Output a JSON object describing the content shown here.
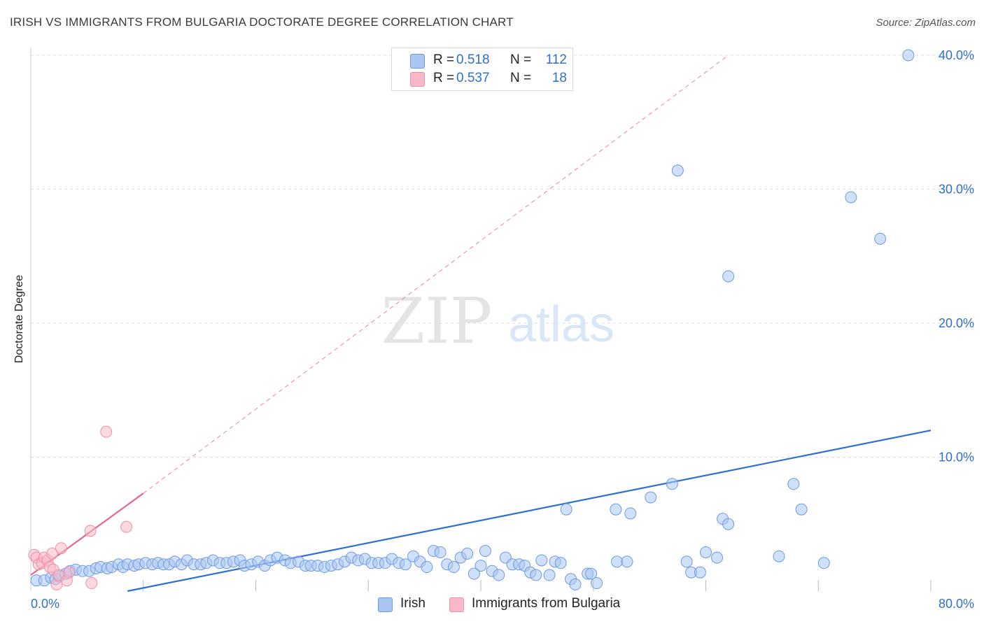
{
  "header": {
    "title": "IRISH VS IMMIGRANTS FROM BULGARIA DOCTORATE DEGREE CORRELATION CHART",
    "source": "Source: ZipAtlas.com"
  },
  "watermark": {
    "zip": "ZIP",
    "atlas": "atlas"
  },
  "legend": {
    "rows": [
      {
        "r_label": "R =",
        "r_value": "0.518",
        "n_label": "N =",
        "n_value": "112",
        "color": "#a9c6f2"
      },
      {
        "r_label": "R =",
        "r_value": "0.537",
        "n_label": "N =",
        "n_value": "18",
        "color": "#f7b9c9"
      }
    ]
  },
  "bottom_legend": [
    {
      "label": "Irish",
      "color": "#a9c6f2"
    },
    {
      "label": "Immigrants from Bulgaria",
      "color": "#f7b9c9"
    }
  ],
  "chart_data": {
    "type": "scatter",
    "title": "IRISH VS IMMIGRANTS FROM BULGARIA DOCTORATE DEGREE CORRELATION CHART",
    "xlabel": "",
    "ylabel": "Doctorate Degree",
    "xlim": [
      0,
      80
    ],
    "ylim": [
      0,
      40.8
    ],
    "x_tick_labels": {
      "0": "0.0%",
      "80": "80.0%"
    },
    "y_ticks": [
      10,
      20,
      30,
      40
    ],
    "y_tick_labels": [
      "10.0%",
      "20.0%",
      "30.0%",
      "40.0%"
    ],
    "grid": true,
    "legend_position": "top-center",
    "colors": {
      "irish_fill": "#a9c6f2",
      "irish_stroke": "#6d9be0",
      "irish_line": "#2f6fd0",
      "bulgaria_fill": "#f7b9c9",
      "bulgaria_stroke": "#ef8fa9",
      "bulgaria_line": "#e8668c",
      "axis_text": "#2f6fd0",
      "grid": "#dddddd"
    },
    "series": [
      {
        "name": "Irish",
        "R": 0.518,
        "N": 112,
        "trend": {
          "x": [
            8.6,
            80
          ],
          "y": [
            0,
            12.0
          ]
        },
        "points": [
          [
            0.5,
            0.8
          ],
          [
            1.2,
            0.8
          ],
          [
            1.8,
            1.0
          ],
          [
            2.2,
            0.9
          ],
          [
            2.5,
            1.1
          ],
          [
            3.1,
            1.3
          ],
          [
            3.5,
            1.5
          ],
          [
            4.0,
            1.6
          ],
          [
            4.6,
            1.5
          ],
          [
            5.2,
            1.5
          ],
          [
            5.8,
            1.7
          ],
          [
            6.2,
            1.8
          ],
          [
            6.8,
            1.7
          ],
          [
            7.2,
            1.8
          ],
          [
            7.8,
            2.0
          ],
          [
            8.2,
            1.8
          ],
          [
            8.6,
            2.0
          ],
          [
            9.2,
            1.9
          ],
          [
            9.6,
            2.0
          ],
          [
            10.2,
            2.1
          ],
          [
            10.8,
            2.0
          ],
          [
            11.3,
            2.1
          ],
          [
            11.8,
            2.0
          ],
          [
            12.3,
            2.0
          ],
          [
            12.8,
            2.2
          ],
          [
            13.4,
            2.0
          ],
          [
            13.9,
            2.3
          ],
          [
            14.5,
            2.0
          ],
          [
            15.1,
            2.0
          ],
          [
            15.6,
            2.1
          ],
          [
            16.2,
            2.3
          ],
          [
            16.8,
            2.1
          ],
          [
            17.4,
            2.1
          ],
          [
            18.0,
            2.2
          ],
          [
            18.6,
            2.3
          ],
          [
            19.0,
            1.9
          ],
          [
            19.6,
            2.0
          ],
          [
            20.2,
            2.2
          ],
          [
            20.8,
            1.9
          ],
          [
            21.3,
            2.3
          ],
          [
            21.9,
            2.5
          ],
          [
            22.6,
            2.3
          ],
          [
            23.1,
            2.1
          ],
          [
            23.8,
            2.2
          ],
          [
            24.4,
            1.9
          ],
          [
            24.9,
            1.9
          ],
          [
            25.5,
            1.9
          ],
          [
            26.1,
            1.8
          ],
          [
            26.7,
            1.9
          ],
          [
            27.3,
            2.0
          ],
          [
            27.9,
            2.2
          ],
          [
            28.5,
            2.5
          ],
          [
            29.1,
            2.3
          ],
          [
            29.7,
            2.4
          ],
          [
            30.3,
            2.1
          ],
          [
            30.9,
            2.1
          ],
          [
            31.5,
            2.1
          ],
          [
            32.1,
            2.4
          ],
          [
            32.7,
            2.1
          ],
          [
            33.3,
            2.0
          ],
          [
            34.0,
            2.6
          ],
          [
            34.6,
            2.2
          ],
          [
            35.2,
            1.8
          ],
          [
            35.8,
            3.0
          ],
          [
            36.4,
            2.9
          ],
          [
            37.0,
            2.0
          ],
          [
            37.6,
            1.8
          ],
          [
            38.2,
            2.5
          ],
          [
            38.8,
            2.8
          ],
          [
            39.4,
            1.3
          ],
          [
            40.0,
            1.9
          ],
          [
            40.4,
            3.0
          ],
          [
            41.0,
            1.5
          ],
          [
            41.6,
            1.2
          ],
          [
            42.2,
            2.5
          ],
          [
            42.8,
            2.0
          ],
          [
            43.4,
            2.0
          ],
          [
            43.9,
            1.9
          ],
          [
            44.4,
            1.4
          ],
          [
            44.9,
            1.2
          ],
          [
            45.4,
            2.3
          ],
          [
            46.1,
            1.2
          ],
          [
            46.6,
            2.2
          ],
          [
            47.1,
            2.1
          ],
          [
            47.6,
            6.1
          ],
          [
            48.0,
            0.9
          ],
          [
            48.4,
            0.5
          ],
          [
            49.5,
            1.3
          ],
          [
            49.8,
            1.3
          ],
          [
            50.3,
            0.6
          ],
          [
            52.0,
            6.1
          ],
          [
            52.1,
            2.2
          ],
          [
            53.0,
            2.2
          ],
          [
            53.3,
            5.8
          ],
          [
            55.1,
            7.0
          ],
          [
            57.0,
            8.0
          ],
          [
            57.5,
            31.4
          ],
          [
            58.3,
            2.2
          ],
          [
            58.7,
            1.4
          ],
          [
            59.5,
            1.4
          ],
          [
            60.0,
            2.9
          ],
          [
            61.0,
            2.5
          ],
          [
            61.5,
            5.4
          ],
          [
            62.0,
            23.5
          ],
          [
            62.0,
            5.0
          ],
          [
            66.5,
            2.6
          ],
          [
            67.8,
            8.0
          ],
          [
            68.5,
            6.1
          ],
          [
            70.5,
            2.1
          ],
          [
            72.9,
            29.4
          ],
          [
            75.5,
            26.3
          ],
          [
            78.0,
            40.0
          ]
        ]
      },
      {
        "name": "Immigrants from Bulgaria",
        "R": 0.537,
        "N": 18,
        "trend_solid": {
          "x": [
            0,
            10.0
          ],
          "y": [
            1.2,
            7.3
          ]
        },
        "trend_dashed": {
          "x": [
            10.0,
            62.0
          ],
          "y": [
            7.3,
            40.0
          ]
        },
        "points": [
          [
            0.3,
            2.7
          ],
          [
            0.5,
            2.5
          ],
          [
            0.7,
            2.0
          ],
          [
            1.0,
            2.1
          ],
          [
            1.2,
            2.5
          ],
          [
            1.5,
            2.3
          ],
          [
            1.7,
            1.8
          ],
          [
            1.9,
            2.8
          ],
          [
            2.0,
            1.6
          ],
          [
            2.3,
            0.5
          ],
          [
            2.5,
            1.2
          ],
          [
            2.7,
            3.2
          ],
          [
            3.2,
            0.8
          ],
          [
            3.4,
            1.4
          ],
          [
            5.3,
            4.5
          ],
          [
            5.4,
            0.6
          ],
          [
            6.7,
            11.9
          ],
          [
            8.5,
            4.8
          ]
        ]
      }
    ]
  }
}
